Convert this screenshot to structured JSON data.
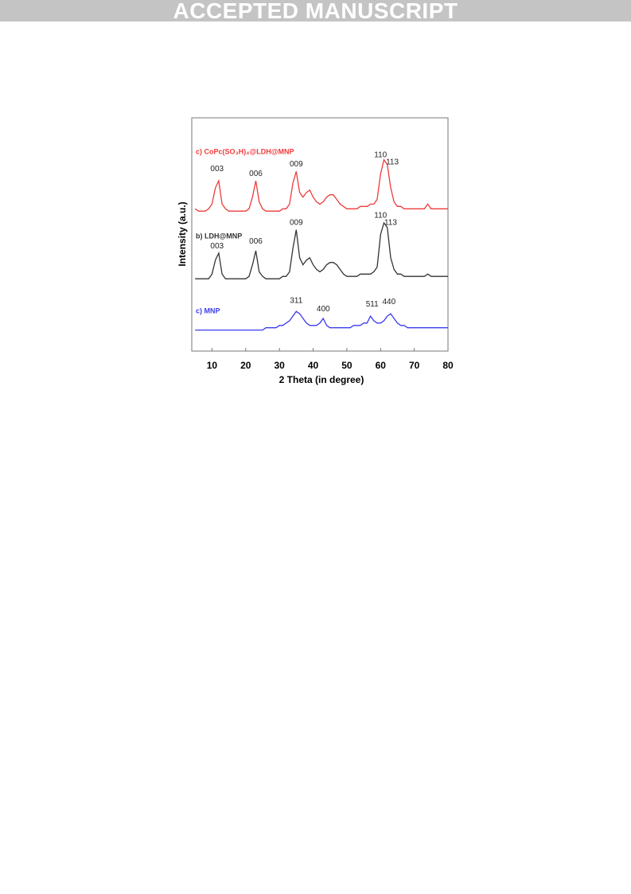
{
  "header": {
    "banner": "ACCEPTED MANUSCRIPT"
  },
  "chart_data": {
    "type": "line",
    "xlabel": "2 Theta (in degree)",
    "ylabel": "Intensity (a.u.)",
    "xlim": [
      4,
      80
    ],
    "ylim": [
      0,
      100
    ],
    "xticks": [
      10,
      20,
      30,
      40,
      50,
      60,
      70,
      80
    ],
    "x": [
      5,
      6,
      7,
      8,
      9,
      10,
      11,
      12,
      13,
      14,
      15,
      16,
      17,
      18,
      19,
      20,
      21,
      22,
      23,
      24,
      25,
      26,
      27,
      28,
      29,
      30,
      31,
      32,
      33,
      34,
      35,
      36,
      37,
      38,
      39,
      40,
      41,
      42,
      43,
      44,
      45,
      46,
      47,
      48,
      49,
      50,
      51,
      52,
      53,
      54,
      55,
      56,
      57,
      58,
      59,
      60,
      61,
      62,
      63,
      64,
      65,
      66,
      67,
      68,
      69,
      70,
      71,
      72,
      73,
      74,
      75,
      76,
      77,
      78,
      79,
      80
    ],
    "series": [
      {
        "name": "c) CoPc(SO₃H)₄@LDH@MNP",
        "color": "#ee3b3b",
        "values": [
          61,
          60,
          60,
          60,
          61,
          63,
          70,
          73,
          63,
          61,
          60,
          60,
          60,
          60,
          60,
          60,
          61,
          66,
          73,
          64,
          61,
          60,
          60,
          60,
          60,
          60,
          61,
          61,
          63,
          72,
          77,
          68,
          66,
          68,
          69,
          66,
          64,
          63,
          64,
          66,
          67,
          67,
          65,
          63,
          62,
          61,
          61,
          61,
          61,
          62,
          62,
          62,
          63,
          63,
          65,
          76,
          82,
          80,
          70,
          64,
          62,
          62,
          61,
          61,
          61,
          61,
          61,
          61,
          61,
          63,
          61,
          61,
          61,
          61,
          61,
          61
        ],
        "peaks": [
          {
            "label": "003",
            "x": 11.5,
            "y": 78
          },
          {
            "label": "006",
            "x": 23,
            "y": 76
          },
          {
            "label": "009",
            "x": 35,
            "y": 80
          },
          {
            "label": "110",
            "x": 60,
            "y": 84
          },
          {
            "label": "113",
            "x": 63.5,
            "y": 81
          }
        ]
      },
      {
        "name": "b) LDH@MNP",
        "color": "#333333",
        "values": [
          31,
          31,
          31,
          31,
          31,
          33,
          39,
          42,
          33,
          31,
          31,
          31,
          31,
          31,
          31,
          31,
          32,
          37,
          43,
          34,
          32,
          31,
          31,
          31,
          31,
          31,
          32,
          32,
          34,
          44,
          52,
          40,
          37,
          39,
          40,
          37,
          35,
          34,
          35,
          37,
          38,
          38,
          37,
          35,
          33,
          32,
          32,
          32,
          32,
          33,
          33,
          33,
          33,
          34,
          36,
          50,
          55,
          53,
          40,
          35,
          33,
          33,
          32,
          32,
          32,
          32,
          32,
          32,
          32,
          33,
          32,
          32,
          32,
          32,
          32,
          32
        ],
        "peaks": [
          {
            "label": "003",
            "x": 11.5,
            "y": 45
          },
          {
            "label": "006",
            "x": 23,
            "y": 47
          },
          {
            "label": "009",
            "x": 35,
            "y": 55
          },
          {
            "label": "110",
            "x": 60,
            "y": 58
          },
          {
            "label": "113",
            "x": 63,
            "y": 55
          }
        ]
      },
      {
        "name": "c) MNP",
        "color": "#3b3bee",
        "values": [
          9,
          9,
          9,
          9,
          9,
          9,
          9,
          9,
          9,
          9,
          9,
          9,
          9,
          9,
          9,
          9,
          9,
          9,
          9,
          9,
          9,
          10,
          10,
          10,
          10,
          11,
          11,
          12,
          13,
          15,
          17,
          16,
          14,
          12,
          11,
          11,
          11,
          12,
          14,
          11,
          10,
          10,
          10,
          10,
          10,
          10,
          10,
          11,
          11,
          11,
          12,
          12,
          15,
          13,
          12,
          12,
          13,
          15,
          16,
          14,
          12,
          11,
          11,
          10,
          10,
          10,
          10,
          10,
          10,
          10,
          10,
          10,
          10,
          10,
          10,
          10
        ],
        "peaks": [
          {
            "label": "311",
            "x": 35,
            "y": 21.5
          },
          {
            "label": "400",
            "x": 43,
            "y": 18
          },
          {
            "label": "511",
            "x": 57.5,
            "y": 20
          },
          {
            "label": "440",
            "x": 62.5,
            "y": 21
          }
        ]
      }
    ]
  }
}
